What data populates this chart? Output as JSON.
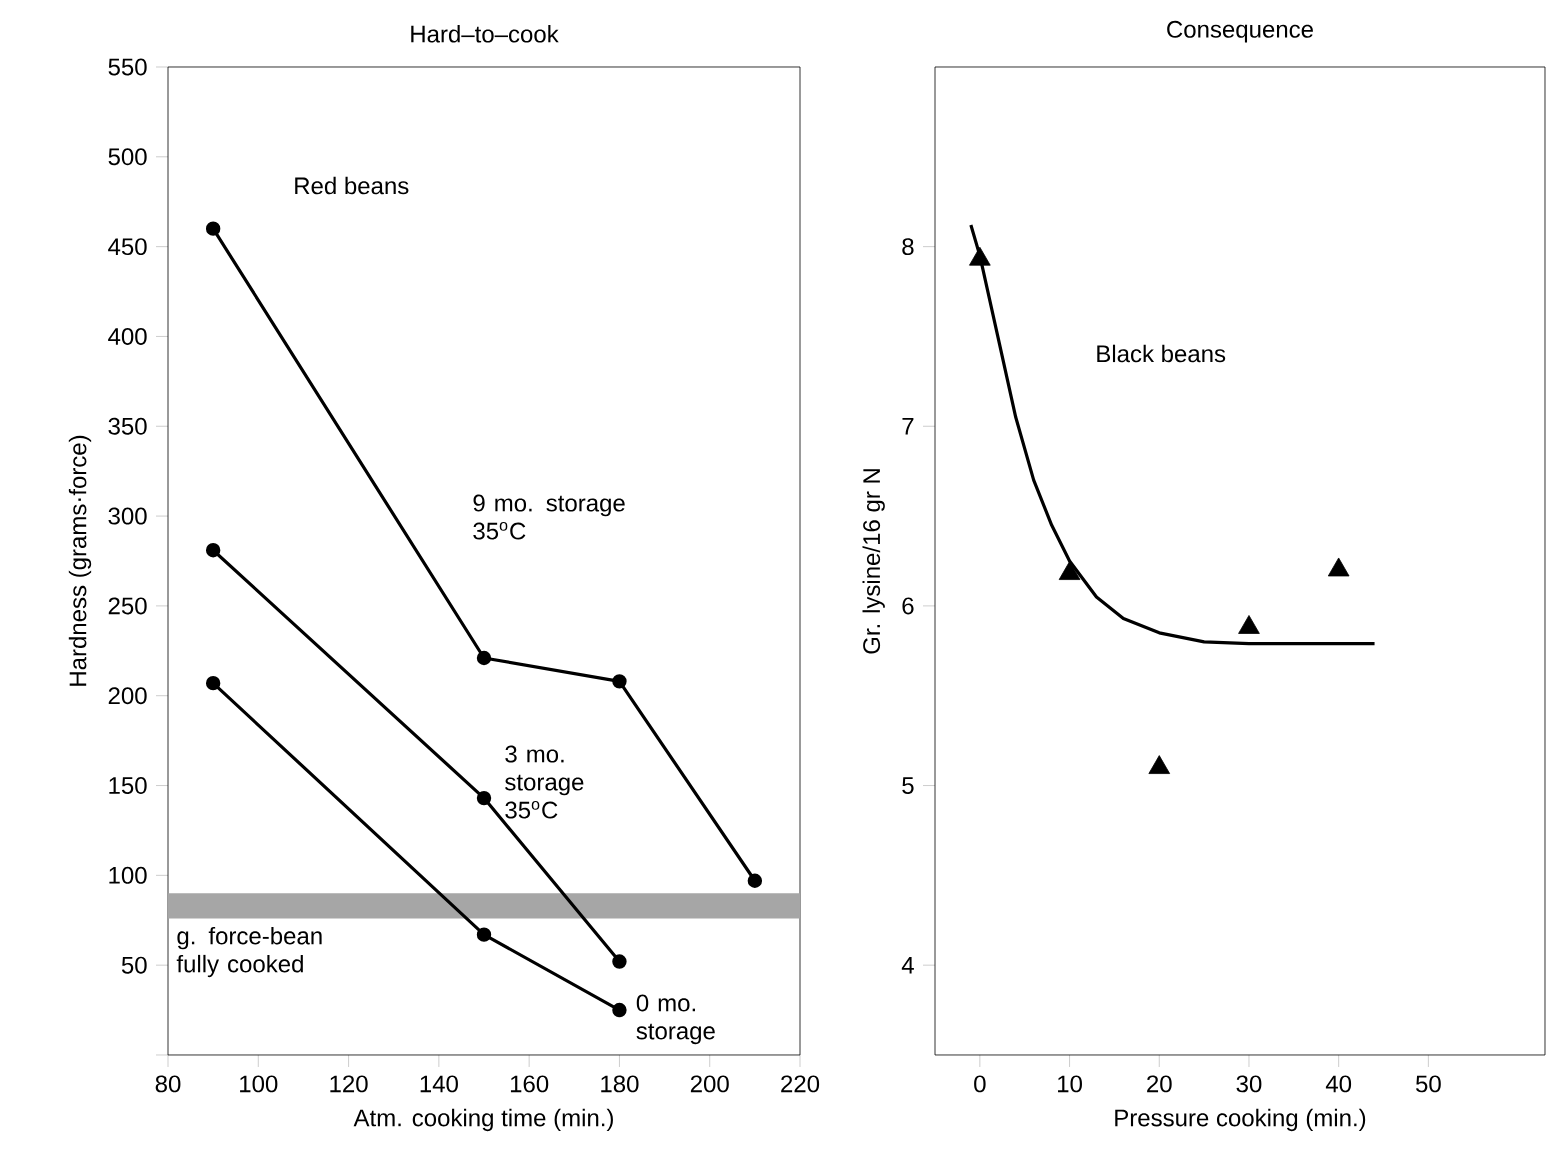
{
  "chart_data": [
    {
      "type": "line",
      "title": "Hard–to–cook",
      "xlabel": "Atm. cooking time (min.)",
      "ylabel": "Hardness (grams·force)",
      "xlim": [
        80,
        220
      ],
      "xticks": [
        80,
        100,
        120,
        140,
        160,
        180,
        200,
        220
      ],
      "ylim": [
        0,
        550
      ],
      "yticks": [
        {
          "value": 0,
          "label": null
        },
        50,
        100,
        150,
        200,
        250,
        300,
        350,
        400,
        450,
        500,
        550
      ],
      "marker": "circle",
      "legend": false,
      "grid": false,
      "annotations": [
        "Red beans"
      ],
      "bands": [
        {
          "axis": "y",
          "from": 76,
          "to": 90,
          "label": "g. force-bean fully cooked",
          "color": "#a6a6a6"
        }
      ],
      "series": [
        {
          "name": "9 mo. storage 35$^{o}$C",
          "color": "#000000",
          "x": [
            90,
            150,
            180,
            210
          ],
          "values": [
            460,
            221,
            208,
            97
          ]
        },
        {
          "name": "3 mo. storage 35$^{o}$C",
          "color": "#000000",
          "x": [
            90,
            150,
            180
          ],
          "values": [
            281,
            143,
            52
          ]
        },
        {
          "name": "0 mo. storage",
          "color": "#000000",
          "x": [
            90,
            150,
            180
          ],
          "values": [
            207,
            67,
            25
          ]
        }
      ]
    },
    {
      "type": "scatter",
      "title": "Consequence",
      "xlabel": "Pressure cooking (min.)",
      "ylabel": "Gr. lysine/16 gr N",
      "xlim": [
        -5,
        63
      ],
      "xticks": [
        0,
        10,
        20,
        30,
        40,
        50
      ],
      "ylim": [
        3.5,
        9
      ],
      "yticks": [
        4,
        5,
        6,
        7,
        8
      ],
      "legend": false,
      "grid": false,
      "annotations": [
        "Black beans"
      ],
      "series": [
        {
          "type": "scatter",
          "marker": "triangle",
          "color": "#000000",
          "x": [
            0,
            10,
            20,
            30,
            40
          ],
          "values": [
            7.93,
            6.18,
            5.1,
            5.88,
            6.2
          ]
        },
        {
          "type": "line",
          "marker": "none",
          "color": "#000000",
          "x": [
            -1,
            0,
            2,
            4,
            6,
            8,
            10,
            13,
            16,
            20,
            25,
            30,
            35,
            44
          ],
          "values": [
            8.12,
            7.95,
            7.5,
            7.05,
            6.7,
            6.45,
            6.25,
            6.05,
            5.93,
            5.85,
            5.8,
            5.79,
            5.79,
            5.79
          ]
        }
      ]
    }
  ]
}
